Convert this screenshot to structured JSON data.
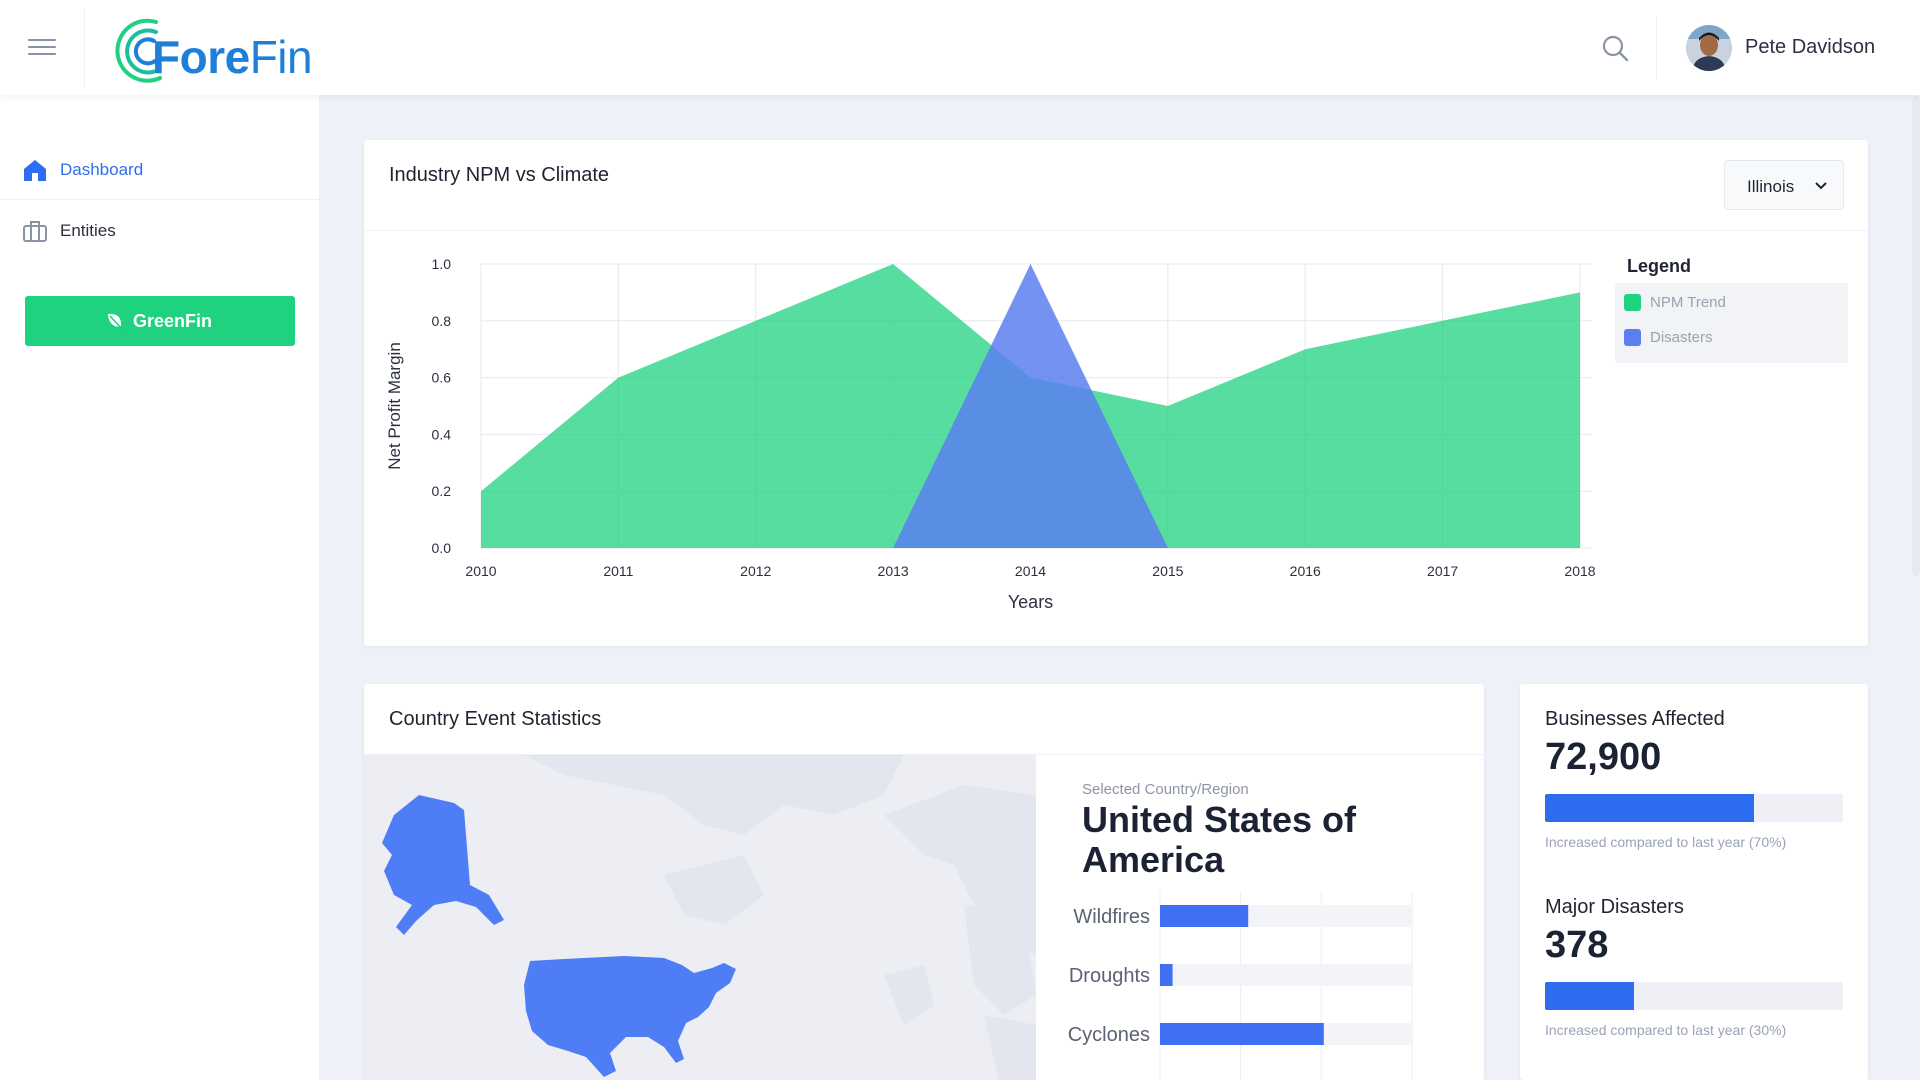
{
  "header": {
    "logo_part1": "Fore",
    "logo_part2": "Fin",
    "user_name": "Pete Davidson"
  },
  "sidebar": {
    "items": [
      {
        "label": "Dashboard",
        "icon": "home-icon",
        "active": true
      },
      {
        "label": "Entities",
        "icon": "briefcase-icon",
        "active": false
      }
    ],
    "greenfin_label": "GreenFin"
  },
  "colors": {
    "accent": "#2f6df0",
    "green": "#1ed27f",
    "npm_area": "#55e8aa",
    "disaster_area": "#5b88f2"
  },
  "npm_card": {
    "title": "Industry NPM vs Climate",
    "region_select": "Illinois",
    "legend_title": "Legend",
    "chart_data": {
      "type": "area",
      "x": [
        "2010",
        "2011",
        "2012",
        "2013",
        "2014",
        "2015",
        "2016",
        "2017",
        "2018"
      ],
      "xlabel": "Years",
      "ylabel": "Net Profit Margin",
      "ylim": [
        0,
        1.0
      ],
      "yticks": [
        "0.0",
        "0.2",
        "0.4",
        "0.6",
        "0.8",
        "1.0"
      ],
      "grid": true,
      "legend_position": "right",
      "series": [
        {
          "name": "NPM Trend",
          "values": [
            0.2,
            0.6,
            0.8,
            1.0,
            0.6,
            0.5,
            0.7,
            0.8,
            0.9
          ]
        },
        {
          "name": "Disasters",
          "values": [
            0,
            0,
            0,
            0,
            1.0,
            0,
            0,
            0,
            0
          ]
        }
      ]
    }
  },
  "country_card": {
    "title": "Country Event Statistics",
    "selected_caption": "Selected Country/Region",
    "selected_country": "United States of America",
    "chart_data": {
      "type": "bar",
      "orientation": "horizontal",
      "categories": [
        "Wildfires",
        "Droughts",
        "Cyclones"
      ],
      "values": [
        35,
        5,
        65
      ],
      "xlim": [
        0,
        100
      ]
    }
  },
  "stats": [
    {
      "title": "Businesses Affected",
      "value": "72,900",
      "progress": 0.7,
      "note": "Increased compared to last year (70%)"
    },
    {
      "title": "Major Disasters",
      "value": "378",
      "progress": 0.3,
      "note": "Increased compared to last year (30%)"
    }
  ]
}
